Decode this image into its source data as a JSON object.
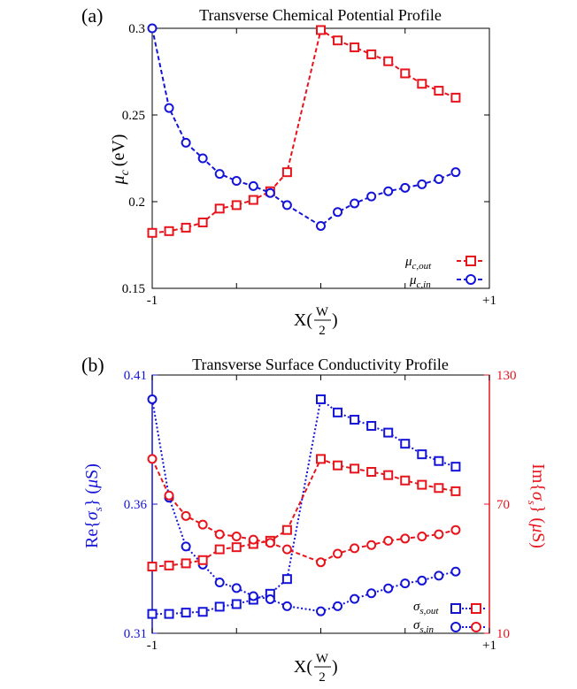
{
  "chart_data": [
    {
      "panel_label": "(a)",
      "type": "line",
      "title": "Transverse Chemical Potential Profile",
      "ylabel_symbol": "μ",
      "ylabel_sub": "c",
      "ylabel_unit": "(eV)",
      "xlabel": "X(W/2)",
      "xlabel_prefix": "X(",
      "xlabel_num": "W",
      "xlabel_den": "2",
      "xlabel_suffix": ")",
      "xlim": [
        -1,
        1
      ],
      "ylim": [
        0.15,
        0.3
      ],
      "xticks": [
        -1,
        1
      ],
      "xtick_labels": [
        "-1",
        "+1"
      ],
      "yticks": [
        0.15,
        0.2,
        0.25,
        0.3
      ],
      "ytick_labels": [
        "0.15",
        "0.2",
        "0.25",
        "0.3"
      ],
      "x": [
        -1,
        -0.9,
        -0.8,
        -0.7,
        -0.6,
        -0.5,
        -0.4,
        -0.3,
        -0.2,
        -0.1,
        0,
        0.1,
        0.2,
        0.3,
        0.4,
        0.5,
        0.6,
        0.7,
        0.8,
        0.9,
        1
      ],
      "series": [
        {
          "name": "μc,out",
          "legend_main": "μ",
          "legend_sub": "c,out",
          "color": "#e8141c",
          "marker": "square",
          "values": [
            0.182,
            0.183,
            0.185,
            0.188,
            0.196,
            0.198,
            0.201,
            0.206,
            0.217,
            null,
            0.299,
            0.293,
            0.289,
            0.285,
            0.281,
            0.274,
            0.268,
            0.264,
            0.26,
            null,
            null
          ]
        },
        {
          "name": "μc,in",
          "legend_main": "μ",
          "legend_sub": "c,in",
          "color": "#1414d8",
          "marker": "circle",
          "values": [
            0.3,
            0.254,
            0.234,
            0.225,
            0.216,
            0.212,
            0.209,
            0.205,
            0.198,
            null,
            0.186,
            0.194,
            0.199,
            0.203,
            0.206,
            0.208,
            0.21,
            0.213,
            0.217,
            null,
            null
          ]
        }
      ]
    },
    {
      "panel_label": "(b)",
      "type": "line",
      "title": "Transverse Surface Conductivity Profile",
      "ylabel_left": "Re{σs} (μS)",
      "ylabel_left_parts": [
        "Re{",
        "σ",
        "s",
        "} (",
        "μ",
        "S)"
      ],
      "ylabel_right": "Im{σs} (μS)",
      "ylabel_right_parts": [
        "Im{",
        "σ",
        "s",
        "} (",
        "μ",
        "S)"
      ],
      "xlabel_prefix": "X(",
      "xlabel_num": "W",
      "xlabel_den": "2",
      "xlabel_suffix": ")",
      "xlim": [
        -1,
        1
      ],
      "ylim_left": [
        0.31,
        0.41
      ],
      "ylim_right": [
        10,
        130
      ],
      "xtick_labels": [
        "-1",
        "+1"
      ],
      "yticks_left": [
        0.31,
        0.36,
        0.41
      ],
      "ytick_labels_left": [
        "0.31",
        "0.36",
        "0.41"
      ],
      "yticks_right": [
        10,
        70,
        130
      ],
      "ytick_labels_right": [
        "10",
        "70",
        "130"
      ],
      "x": [
        -1,
        -0.9,
        -0.8,
        -0.7,
        -0.6,
        -0.5,
        -0.4,
        -0.3,
        -0.2,
        -0.1,
        0,
        0.1,
        0.2,
        0.3,
        0.4,
        0.5,
        0.6,
        0.7,
        0.8,
        0.9,
        1
      ],
      "series": [
        {
          "name": "Re σs,out",
          "axis": "left",
          "color": "#1414d8",
          "marker": "square",
          "style": "dotted",
          "values": [
            0.3175,
            0.3175,
            0.318,
            0.3183,
            0.3203,
            0.3213,
            0.323,
            0.3253,
            0.331,
            null,
            0.4006,
            0.3955,
            0.3927,
            0.3903,
            0.3877,
            0.3834,
            0.3793,
            0.3767,
            0.3745,
            null,
            null
          ]
        },
        {
          "name": "Re σs,in",
          "axis": "left",
          "color": "#1414d8",
          "marker": "circle",
          "style": "dotted",
          "values": [
            0.4006,
            0.3625,
            0.3436,
            0.3366,
            0.3297,
            0.3275,
            0.3244,
            0.3232,
            0.3205,
            null,
            0.3185,
            0.3205,
            0.3233,
            0.3255,
            0.3274,
            0.3293,
            0.3304,
            0.3323,
            0.3339,
            null,
            null
          ]
        },
        {
          "name": "Im σs,out",
          "axis": "right",
          "color": "#e8141c",
          "marker": "square",
          "style": "dashed",
          "values": [
            41,
            41.5,
            42.5,
            44,
            49,
            50,
            51.5,
            53,
            58,
            null,
            91,
            88,
            86.5,
            85,
            83.5,
            81,
            79,
            77.5,
            76,
            null,
            null
          ]
        },
        {
          "name": "Im σs,in",
          "axis": "right",
          "color": "#e8141c",
          "marker": "circle",
          "style": "dashed",
          "values": [
            91,
            74,
            64.5,
            60.5,
            56,
            55,
            53.5,
            52,
            49,
            null,
            43,
            47,
            49.5,
            51,
            53,
            54,
            55,
            56,
            58,
            null,
            null
          ]
        }
      ],
      "legend": [
        {
          "main": "σ",
          "sub": "s,out",
          "marker": "square"
        },
        {
          "main": "σ",
          "sub": "s,in",
          "marker": "circle"
        }
      ]
    }
  ]
}
